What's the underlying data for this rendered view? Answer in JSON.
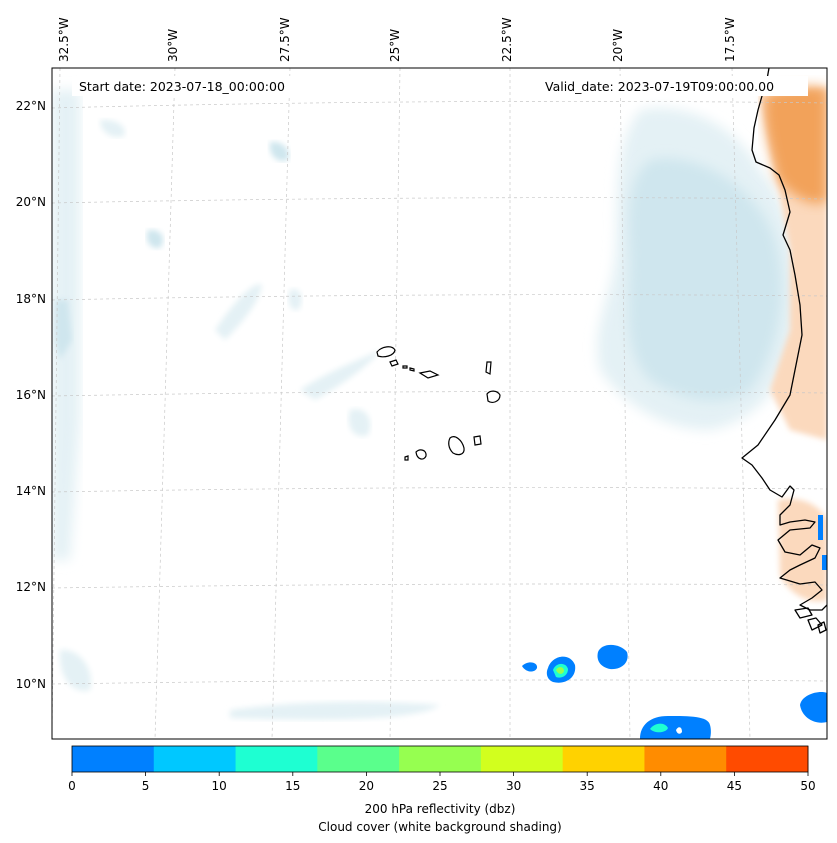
{
  "info": {
    "start_date_label": "Start date: 2023-07-18_00:00:00",
    "valid_date_label": "Valid_date: 2023-07-19T09:00:00.00"
  },
  "map": {
    "lon_ticks": [
      "32.5°W",
      "30°W",
      "27.5°W",
      "25°W",
      "22.5°W",
      "20°W",
      "17.5°W"
    ],
    "lat_ticks": [
      "22°N",
      "20°N",
      "18°N",
      "16°N",
      "14°N",
      "12°N",
      "10°N"
    ],
    "colors": {
      "cloud": "#cfe6ee",
      "coast": "#000000",
      "land_tint": "#f2a25a",
      "grid": "#c8c8c8"
    }
  },
  "colorbar": {
    "ticks": [
      "0",
      "5",
      "10",
      "15",
      "20",
      "25",
      "30",
      "35",
      "40",
      "45",
      "50"
    ],
    "colors": [
      "#0080ff",
      "#00c8ff",
      "#1effd2",
      "#5aff8c",
      "#96ff50",
      "#d2ff1e",
      "#ffd200",
      "#ff8c00",
      "#ff4b00"
    ],
    "label": "200 hPa reflectivity (dbz)",
    "sublabel": "Cloud cover (white background shading)"
  }
}
